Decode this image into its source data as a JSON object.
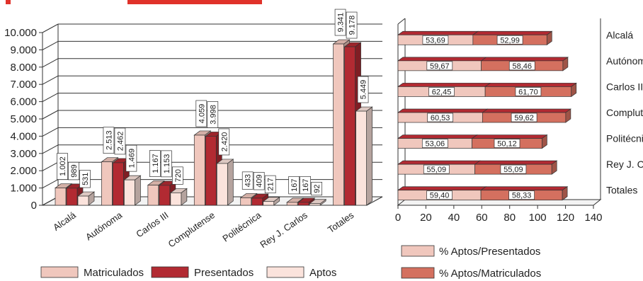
{
  "colors": {
    "matriculados": "#f0c7bd",
    "presentados": "#b22a32",
    "aptos": "#fbe3dc",
    "aptos_presentados": "#f0c7bd",
    "aptos_matriculados": "#d4705f",
    "header_accent": "#e0322a"
  },
  "chart_data": [
    {
      "type": "bar",
      "categories": [
        "Alcalá",
        "Autónoma",
        "Carlos III",
        "Complutense",
        "Politécnica",
        "Rey J. Carlos",
        "Totales"
      ],
      "series": [
        {
          "name": "Matriculados",
          "values": [
            1002,
            2513,
            1167,
            4059,
            433,
            167,
            9341
          ],
          "labels": [
            "1.002",
            "2.513",
            "1.167",
            "4.059",
            "433",
            "167",
            "9.341"
          ]
        },
        {
          "name": "Presentados",
          "values": [
            989,
            2462,
            1153,
            3998,
            409,
            167,
            9178
          ],
          "labels": [
            "989",
            "2.462",
            "1.153",
            "3.998",
            "409",
            "167",
            "9.178"
          ]
        },
        {
          "name": "Aptos",
          "values": [
            531,
            1469,
            720,
            2420,
            217,
            92,
            5449
          ],
          "labels": [
            "531",
            "1.469",
            "720",
            "2.420",
            "217",
            "92",
            "5.449"
          ]
        }
      ],
      "ylim": [
        0,
        10000
      ],
      "yticks": [
        "0",
        "1.000",
        "2.000",
        "3.000",
        "4.000",
        "5.000",
        "6.000",
        "7.000",
        "8.000",
        "9.000",
        "10.000"
      ],
      "grid": true,
      "legend_position": "bottom"
    },
    {
      "type": "bar",
      "orientation": "horizontal",
      "stacked": true,
      "categories": [
        "Alcalá",
        "Autónoma",
        "Carlos III",
        "Complutense",
        "Politécnica",
        "Rey J. Carlos",
        "Totales"
      ],
      "series": [
        {
          "name": "% Aptos/Presentados",
          "values": [
            53.69,
            59.67,
            62.45,
            60.53,
            53.06,
            55.09,
            59.4
          ],
          "labels": [
            "53,69",
            "59,67",
            "62,45",
            "60,53",
            "53,06",
            "55,09",
            "59,40"
          ]
        },
        {
          "name": "% Aptos/Matriculados",
          "values": [
            52.99,
            58.46,
            61.7,
            59.62,
            50.12,
            55.09,
            58.33
          ],
          "labels": [
            "52,99",
            "58,46",
            "61,70",
            "59,62",
            "50,12",
            "55,09",
            "58,33"
          ]
        }
      ],
      "xlim": [
        0,
        140
      ],
      "xticks": [
        "0",
        "20",
        "40",
        "60",
        "80",
        "100",
        "120",
        "140"
      ],
      "grid": false,
      "legend_position": "bottom"
    }
  ]
}
